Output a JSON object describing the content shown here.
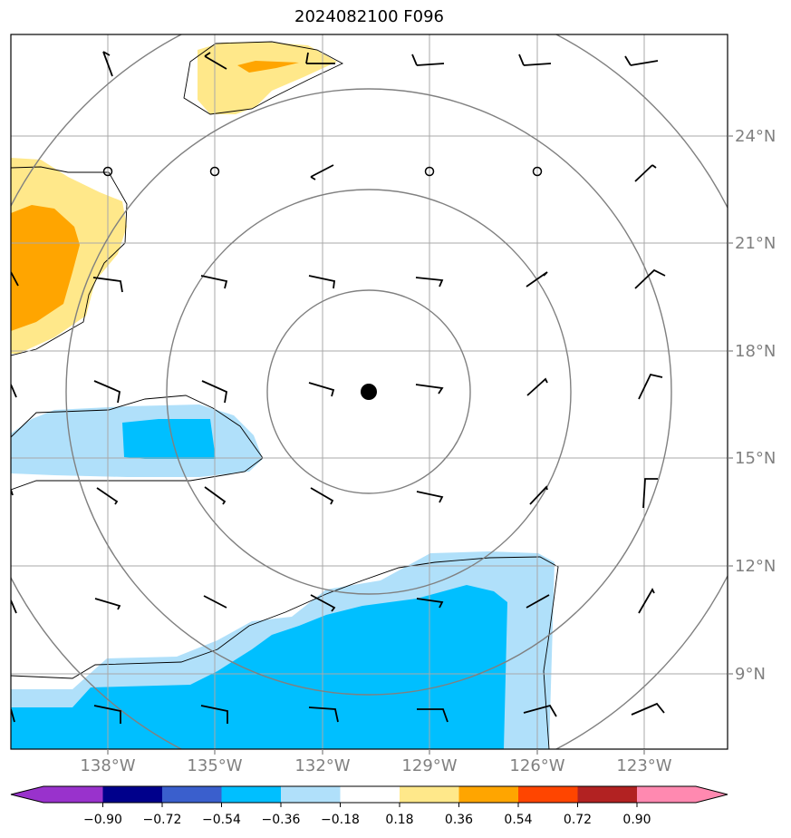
{
  "title": "2024082100 F096",
  "lat_labels": [
    "24°N",
    "21°N",
    "18°N",
    "15°N",
    "12°N",
    "9°N"
  ],
  "lon_labels": [
    "138°W",
    "135°W",
    "132°W",
    "129°W",
    "126°W",
    "123°W"
  ],
  "colorbar": {
    "ticks": [
      "−0.90",
      "−0.72",
      "−0.54",
      "−0.36",
      "−0.18",
      "0.18",
      "0.36",
      "0.54",
      "0.72",
      "0.90"
    ],
    "colors": [
      "#9932cc",
      "#00008b",
      "#3a5fcd",
      "#00bfff",
      "#b0e0fa",
      "#ffffff",
      "#ffe88a",
      "#ffa500",
      "#ff4500",
      "#b22222",
      "#ff89b0"
    ]
  },
  "colors": {
    "light_blue": "#b0e0fa",
    "blue": "#00bfff",
    "light_yellow": "#ffe88a",
    "orange": "#ffa500",
    "grid": "#a9a9a9",
    "rings": "#808080"
  },
  "center_marker": "storm-center-dot",
  "range_rings": 4
}
